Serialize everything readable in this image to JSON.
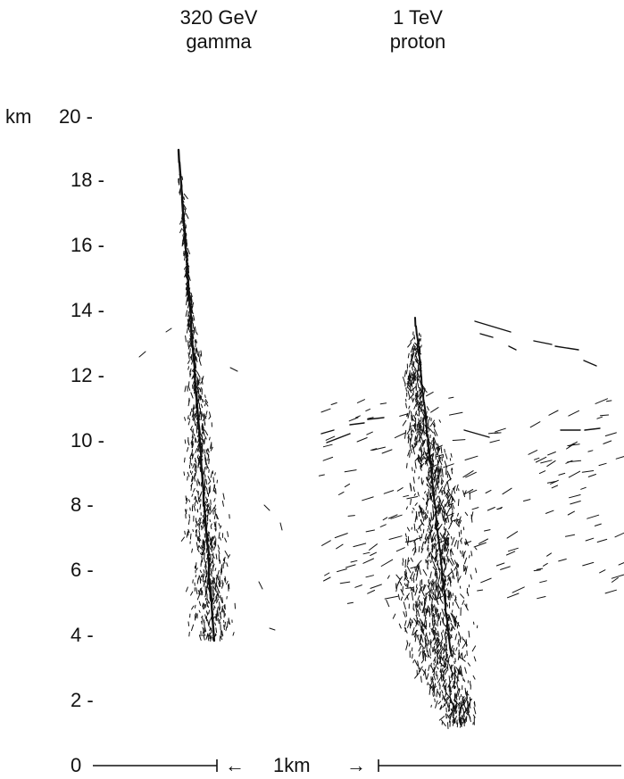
{
  "columns": [
    {
      "line1": "320 GeV",
      "line2": "gamma"
    },
    {
      "line1": "1 TeV",
      "line2": "proton"
    }
  ],
  "axis": {
    "unit": "km",
    "ticks": [
      "20 -",
      "18 -",
      "16 -",
      "14 -",
      "12 -",
      "10 -",
      "8 -",
      "6 -",
      "4 -",
      "2 -",
      "0"
    ]
  },
  "scale_bar": {
    "label": "1km",
    "left_arrow": "←",
    "right_arrow": "→"
  }
}
